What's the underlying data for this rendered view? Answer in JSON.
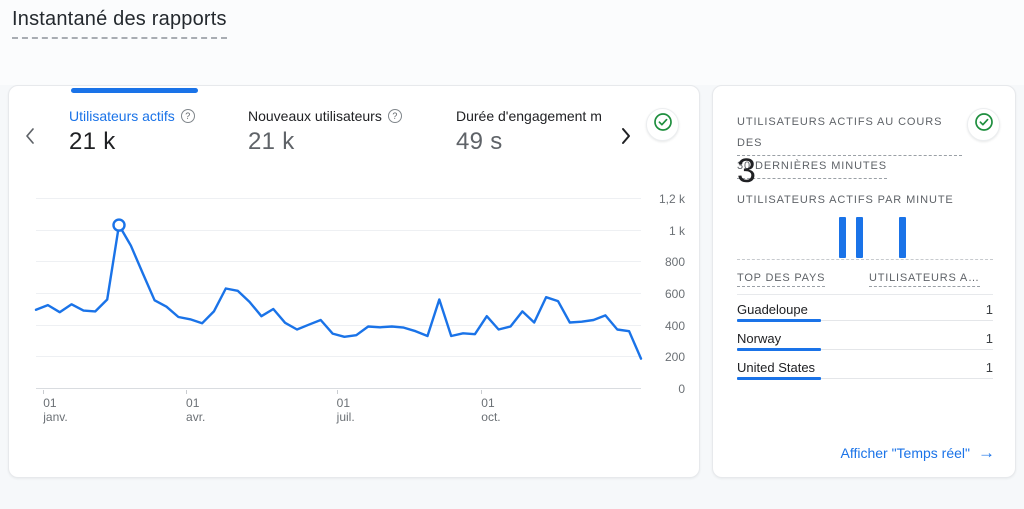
{
  "page_title": "Instantané des rapports",
  "icons": {
    "help": "?"
  },
  "summary": {
    "tabs": [
      {
        "label": "Utilisateurs actifs",
        "value": "21 k",
        "active": true
      },
      {
        "label": "Nouveaux utilisateurs",
        "value": "21 k",
        "active": false
      },
      {
        "label": "Durée d'engagement m",
        "value": "49 s",
        "active": false
      }
    ]
  },
  "chart_data": [
    {
      "type": "line",
      "title": "Utilisateurs actifs",
      "xlabel": "",
      "ylabel": "",
      "ylim": [
        0,
        1200
      ],
      "grid": true,
      "line_color": "#1a73e8",
      "yticks": [
        {
          "v": 0,
          "label": "0"
        },
        {
          "v": 200,
          "label": "200"
        },
        {
          "v": 400,
          "label": "400"
        },
        {
          "v": 600,
          "label": "600"
        },
        {
          "v": 800,
          "label": "800"
        },
        {
          "v": 1000,
          "label": "1 k"
        },
        {
          "v": 1200,
          "label": "1,2 k"
        }
      ],
      "xticks": [
        {
          "frac": 0.012,
          "line1": "01",
          "line2": "janv."
        },
        {
          "frac": 0.248,
          "line1": "01",
          "line2": "avr."
        },
        {
          "frac": 0.497,
          "line1": "01",
          "line2": "juil."
        },
        {
          "frac": 0.736,
          "line1": "01",
          "line2": "oct."
        }
      ],
      "values": [
        500,
        530,
        485,
        535,
        495,
        490,
        565,
        1035,
        905,
        730,
        560,
        520,
        455,
        440,
        415,
        490,
        635,
        620,
        550,
        460,
        505,
        418,
        376,
        406,
        436,
        350,
        330,
        340,
        395,
        390,
        395,
        388,
        365,
        335,
        565,
        335,
        352,
        346,
        460,
        376,
        395,
        490,
        420,
        580,
        555,
        420,
        425,
        436,
        465,
        376,
        365,
        192
      ],
      "marker_index": 7
    },
    {
      "type": "bar",
      "title": "Utilisateurs actifs par minute",
      "slots": 30,
      "bar_color": "#1a73e8",
      "bars": [
        {
          "slot": 12,
          "value": 1
        },
        {
          "slot": 14,
          "value": 1
        },
        {
          "slot": 19,
          "value": 1
        }
      ]
    }
  ],
  "realtime": {
    "title_line1": "UTILISATEURS ACTIFS AU COURS DES",
    "title_line2": "30 DERNIÈRES MINUTES",
    "active_count": "3",
    "per_minute_label": "UTILISATEURS ACTIFS PAR MINUTE",
    "table": {
      "country_header": "TOP DES PAYS",
      "users_header": "UTILISATEURS A…",
      "rows": [
        {
          "country": "Guadeloupe",
          "value": "1",
          "bar_fraction": 0.33
        },
        {
          "country": "Norway",
          "value": "1",
          "bar_fraction": 0.33
        },
        {
          "country": "United States",
          "value": "1",
          "bar_fraction": 0.33
        }
      ]
    },
    "link_label": "Afficher \"Temps réel\"",
    "link_arrow": "→"
  },
  "colors": {
    "accent": "#1a73e8",
    "text_dark": "#202124",
    "text_gray": "#5f6368",
    "green": "#1e8e3e"
  }
}
